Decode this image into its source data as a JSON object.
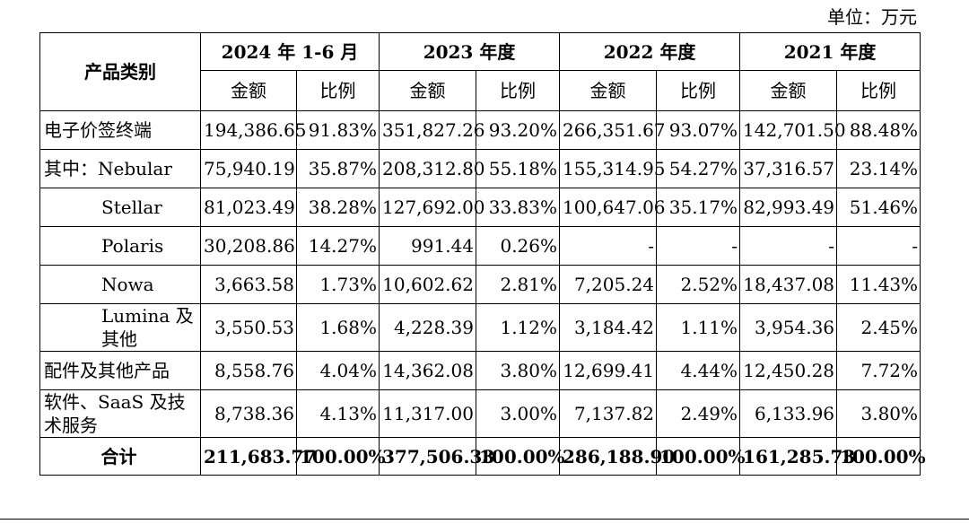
{
  "unit_label": "单位：万元",
  "header": {
    "category_label": "产品类别",
    "periods": [
      "2024 年 1-6 月",
      "2023 年度",
      "2022 年度",
      "2021 年度"
    ],
    "amount_label": "金额",
    "ratio_label": "比例"
  },
  "rows": [
    {
      "name": "电子价签终端",
      "values": [
        "194,386.65",
        "91.83%",
        "351,827.26",
        "93.20%",
        "266,351.67",
        "93.07%",
        "142,701.50",
        "88.48%"
      ]
    },
    {
      "name": "其中：Nebular",
      "values": [
        "75,940.19",
        "35.87%",
        "208,312.80",
        "55.18%",
        "155,314.95",
        "54.27%",
        "37,316.57",
        "23.14%"
      ]
    },
    {
      "name": "Stellar",
      "values": [
        "81,023.49",
        "38.28%",
        "127,692.00",
        "33.83%",
        "100,647.06",
        "35.17%",
        "82,993.49",
        "51.46%"
      ]
    },
    {
      "name": "Polaris",
      "values": [
        "30,208.86",
        "14.27%",
        "991.44",
        "0.26%",
        "-",
        "-",
        "-",
        "-"
      ]
    },
    {
      "name": "Nowa",
      "values": [
        "3,663.58",
        "1.73%",
        "10,602.62",
        "2.81%",
        "7,205.24",
        "2.52%",
        "18,437.08",
        "11.43%"
      ]
    },
    {
      "name": "Lumina 及其他",
      "values": [
        "3,550.53",
        "1.68%",
        "4,228.39",
        "1.12%",
        "3,184.42",
        "1.11%",
        "3,954.36",
        "2.45%"
      ]
    },
    {
      "name": "配件及其他产品",
      "values": [
        "8,558.76",
        "4.04%",
        "14,362.08",
        "3.80%",
        "12,699.41",
        "4.44%",
        "12,450.28",
        "7.72%"
      ]
    },
    {
      "name": "软件、SaaS 及技术服务",
      "values": [
        "8,738.36",
        "4.13%",
        "11,317.00",
        "3.00%",
        "7,137.82",
        "2.49%",
        "6,133.96",
        "3.80%"
      ]
    }
  ],
  "total": {
    "name": "合计",
    "values": [
      "211,683.77",
      "100.00%",
      "377,506.33",
      "100.00%",
      "286,188.90",
      "100.00%",
      "161,285.73",
      "100.00%"
    ]
  }
}
